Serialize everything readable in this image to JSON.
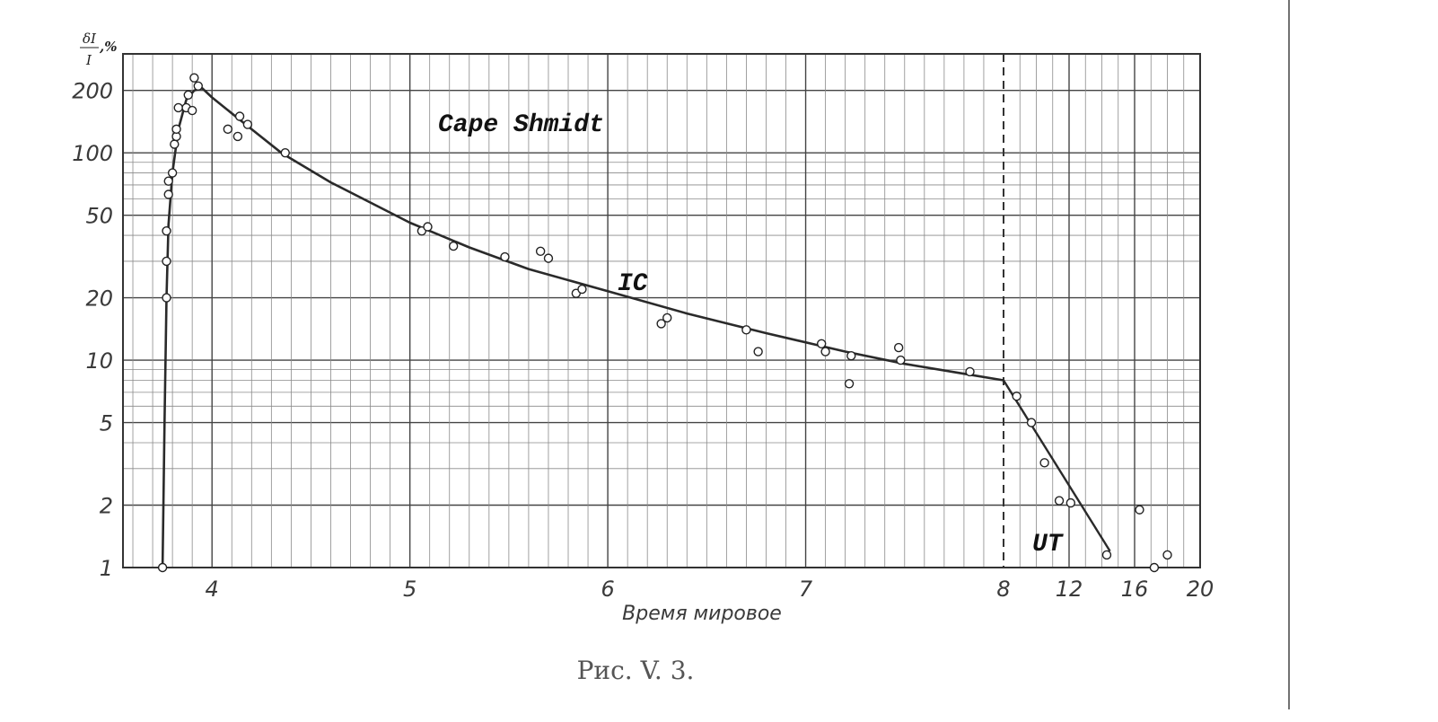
{
  "chart_data": {
    "type": "line",
    "y_scale": "log",
    "grid": true,
    "ylabel": "δI/I, %",
    "xlabel": "Время мировое",
    "caption": "Рис. V. 3.",
    "annotations": [
      "Cape Shmidt",
      "IC",
      "UT"
    ],
    "ylim": [
      1,
      300
    ],
    "y_ticks": [
      1,
      2,
      5,
      10,
      20,
      50,
      100,
      200
    ],
    "y_tick_labels": [
      "1",
      "2",
      "5",
      "10",
      "20",
      "50",
      "100",
      "200"
    ],
    "segments": [
      {
        "name": "IC",
        "xlim": [
          3.55,
          8
        ],
        "x_ticks": [
          4,
          5,
          6,
          7,
          8
        ],
        "x_tick_labels": [
          "4",
          "5",
          "6",
          "7",
          "8"
        ],
        "curve": [
          [
            3.75,
            1
          ],
          [
            3.76,
            5
          ],
          [
            3.77,
            20
          ],
          [
            3.78,
            45
          ],
          [
            3.8,
            80
          ],
          [
            3.83,
            130
          ],
          [
            3.87,
            180
          ],
          [
            3.91,
            200
          ],
          [
            3.95,
            205
          ],
          [
            4.0,
            185
          ],
          [
            4.1,
            155
          ],
          [
            4.2,
            130
          ],
          [
            4.35,
            100
          ],
          [
            4.6,
            72
          ],
          [
            5.0,
            46
          ],
          [
            5.3,
            35
          ],
          [
            5.6,
            27.5
          ],
          [
            6.0,
            21.5
          ],
          [
            6.4,
            16.8
          ],
          [
            6.8,
            13.5
          ],
          [
            7.2,
            11
          ],
          [
            7.5,
            9.6
          ],
          [
            7.8,
            8.6
          ],
          [
            8.0,
            8
          ]
        ],
        "points": [
          [
            3.75,
            1
          ],
          [
            3.77,
            20
          ],
          [
            3.77,
            30
          ],
          [
            3.77,
            42
          ],
          [
            3.78,
            63
          ],
          [
            3.78,
            73
          ],
          [
            3.8,
            80
          ],
          [
            3.81,
            110
          ],
          [
            3.82,
            120
          ],
          [
            3.82,
            130
          ],
          [
            3.83,
            165
          ],
          [
            3.87,
            165
          ],
          [
            3.88,
            190
          ],
          [
            3.9,
            160
          ],
          [
            3.91,
            230
          ],
          [
            3.93,
            210
          ],
          [
            4.08,
            130
          ],
          [
            4.13,
            120
          ],
          [
            4.14,
            150
          ],
          [
            4.18,
            137
          ],
          [
            4.37,
            100
          ],
          [
            5.06,
            42
          ],
          [
            5.09,
            44
          ],
          [
            5.22,
            35.5
          ],
          [
            5.48,
            31.5
          ],
          [
            5.66,
            33.5
          ],
          [
            5.7,
            31
          ],
          [
            5.84,
            21
          ],
          [
            5.87,
            22
          ],
          [
            6.27,
            15
          ],
          [
            6.3,
            16
          ],
          [
            6.7,
            14
          ],
          [
            6.76,
            11
          ],
          [
            7.08,
            12
          ],
          [
            7.1,
            11
          ],
          [
            7.23,
            10.5
          ],
          [
            7.22,
            7.7
          ],
          [
            7.47,
            11.5
          ],
          [
            7.48,
            10
          ],
          [
            7.83,
            8.8
          ]
        ]
      },
      {
        "name": "UT",
        "xlim": [
          8,
          20
        ],
        "x_ticks": [
          12,
          16,
          20
        ],
        "x_tick_labels": [
          "12",
          "16",
          "20"
        ],
        "curve": [
          [
            8,
            8
          ],
          [
            14.5,
            1.2
          ]
        ],
        "points": [
          [
            8.8,
            6.7
          ],
          [
            9.7,
            5
          ],
          [
            10.5,
            3.2
          ],
          [
            11.4,
            2.1
          ],
          [
            12.1,
            2.05
          ],
          [
            14.3,
            1.15
          ],
          [
            16.3,
            1.9
          ],
          [
            17.2,
            1
          ],
          [
            18.0,
            1.15
          ]
        ]
      }
    ]
  }
}
